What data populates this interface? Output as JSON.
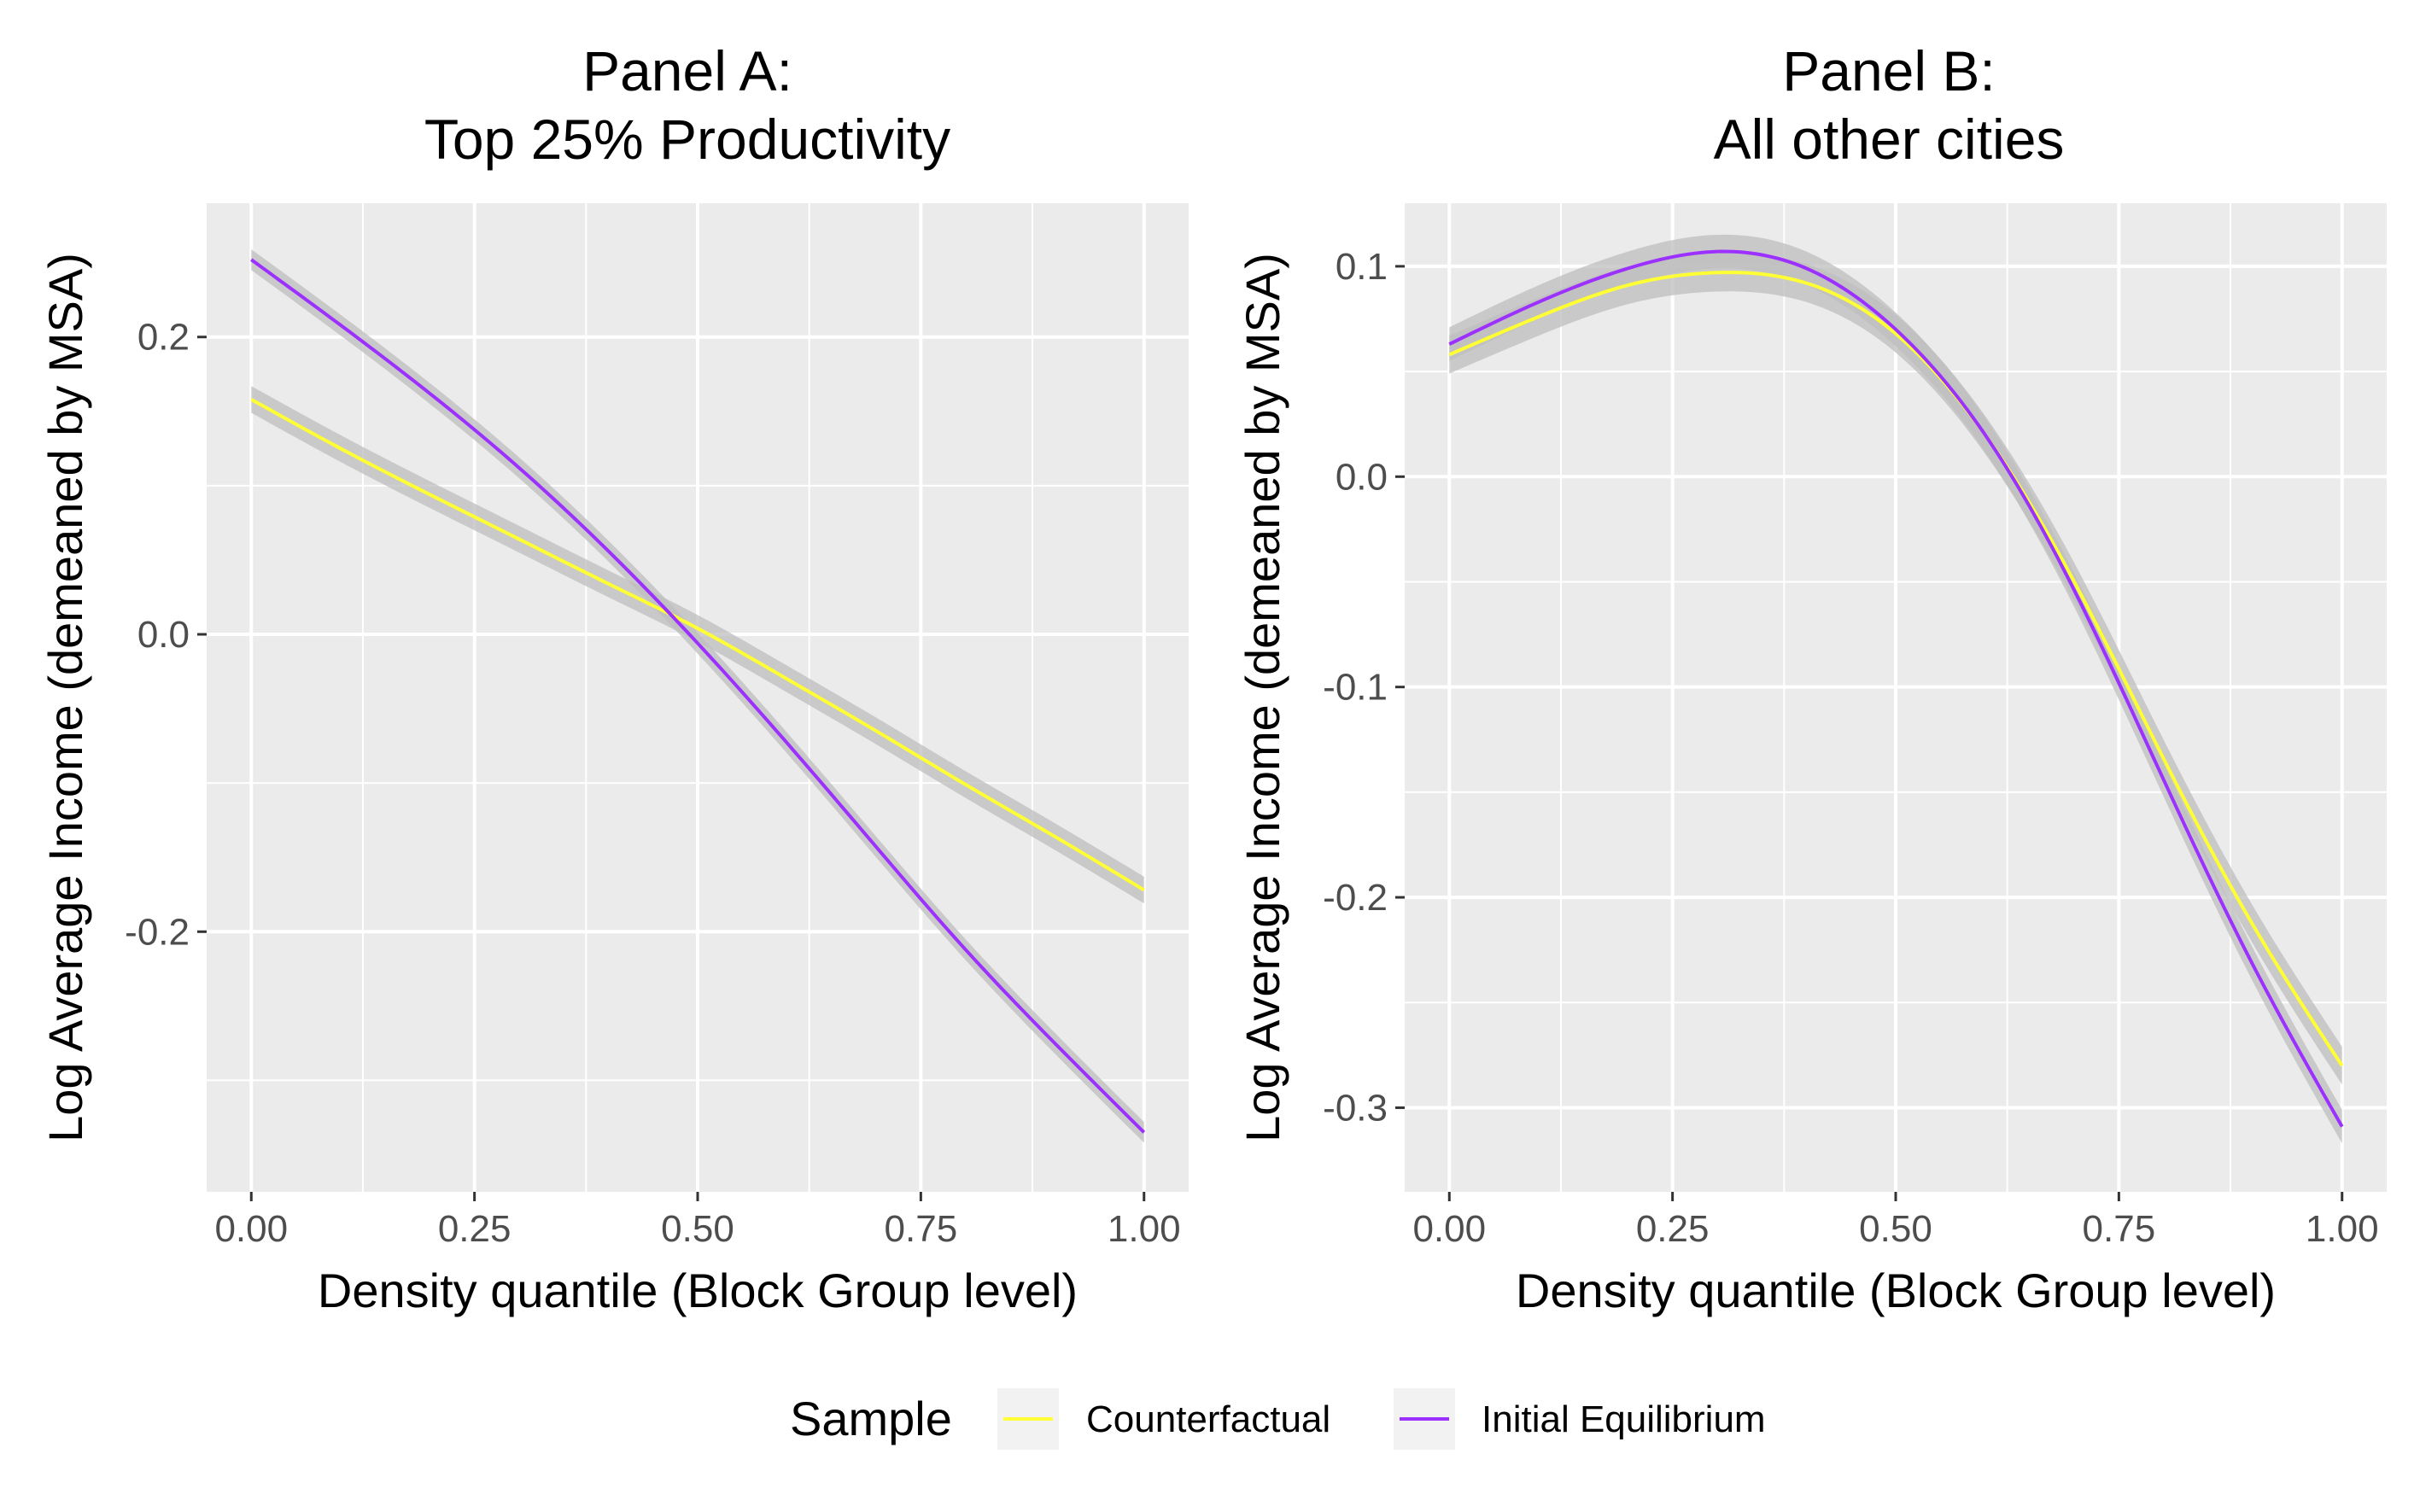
{
  "figure": {
    "background": "#ffffff",
    "panel_background": "#ebebeb",
    "grid_color": "#ffffff",
    "ribbon_color": "#bebebe"
  },
  "legend": {
    "title": "Sample",
    "position": "bottom",
    "entries": [
      {
        "label": "Counterfactual",
        "color": "#FFFF33"
      },
      {
        "label": "Initial Equilibrium",
        "color": "#9B30FF"
      }
    ]
  },
  "chart_data": [
    {
      "type": "line",
      "title_lines": [
        "Panel A:",
        "Top 25% Productivity"
      ],
      "xlabel": "Density quantile (Block Group level)",
      "ylabel": "Log Average Income (demeaned by MSA)",
      "xlim": [
        -0.05,
        1.05
      ],
      "ylim": [
        -0.375,
        0.29
      ],
      "x_ticks": [
        0,
        0.25,
        0.5,
        0.75,
        1
      ],
      "x_tick_labels": [
        "0.00",
        "0.25",
        "0.50",
        "0.75",
        "1.00"
      ],
      "y_ticks": [
        -0.2,
        0,
        0.2
      ],
      "y_tick_labels": [
        "-0.2",
        "0.0",
        "0.2"
      ],
      "grid": true,
      "confidence_band": true,
      "x": [
        0,
        0.1,
        0.2,
        0.3,
        0.4,
        0.5,
        0.6,
        0.7,
        0.8,
        0.9,
        1
      ],
      "series": [
        {
          "name": "Counterfactual",
          "color": "#FFFF33",
          "values": [
            0.158,
            0.125,
            0.094,
            0.064,
            0.034,
            0.004,
            -0.03,
            -0.065,
            -0.101,
            -0.136,
            -0.172
          ],
          "band": 0.009
        },
        {
          "name": "Initial Equilibrium",
          "color": "#9B30FF",
          "values": [
            0.252,
            0.208,
            0.162,
            0.112,
            0.056,
            -0.006,
            -0.073,
            -0.143,
            -0.212,
            -0.275,
            -0.335
          ],
          "band": 0.007
        }
      ]
    },
    {
      "type": "line",
      "title_lines": [
        "Panel B:",
        "All other cities"
      ],
      "xlabel": "Density quantile (Block Group level)",
      "ylabel": "Log Average Income (demeaned by MSA)",
      "xlim": [
        -0.05,
        1.05
      ],
      "ylim": [
        -0.34,
        0.13
      ],
      "x_ticks": [
        0,
        0.25,
        0.5,
        0.75,
        1
      ],
      "x_tick_labels": [
        "0.00",
        "0.25",
        "0.50",
        "0.75",
        "1.00"
      ],
      "y_ticks": [
        -0.3,
        -0.2,
        -0.1,
        0,
        0.1
      ],
      "y_tick_labels": [
        "-0.3",
        "-0.2",
        "-0.1",
        "0.0",
        "0.1"
      ],
      "grid": true,
      "confidence_band": true,
      "x": [
        0,
        0.1,
        0.2,
        0.3,
        0.4,
        0.5,
        0.6,
        0.7,
        0.8,
        0.9,
        1
      ],
      "series": [
        {
          "name": "Counterfactual",
          "color": "#FFFF33",
          "values": [
            0.058,
            0.076,
            0.091,
            0.097,
            0.092,
            0.068,
            0.02,
            -0.05,
            -0.134,
            -0.213,
            -0.28
          ],
          "band": 0.009
        },
        {
          "name": "Initial Equilibrium",
          "color": "#9B30FF",
          "values": [
            0.063,
            0.083,
            0.099,
            0.107,
            0.099,
            0.07,
            0.02,
            -0.054,
            -0.144,
            -0.232,
            -0.309
          ],
          "band": 0.008
        }
      ]
    }
  ]
}
